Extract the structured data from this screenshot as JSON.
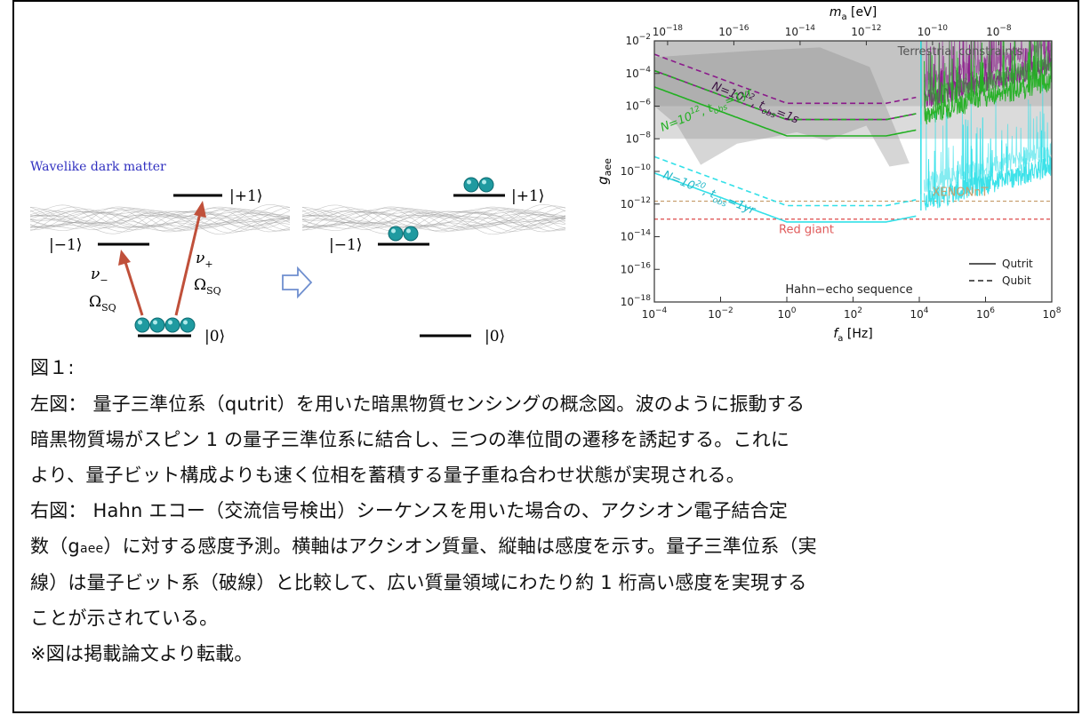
{
  "left_panel": {
    "wave_label": "Wavelike dark matter",
    "level_plus": "|+1⟩",
    "level_minus": "|−1⟩",
    "level_zero": "|0⟩",
    "nu_minus": "ν",
    "nu_minus_sub": "−",
    "nu_plus": "ν",
    "nu_plus_sub": "+",
    "omega": "Ω",
    "omega_sub": "SQ",
    "arrow_color": "#c0503a",
    "ball_color": "#1f9aa0"
  },
  "chart_data": {
    "type": "line",
    "xlabel": "f",
    "xlabel_sub": "a",
    "xlabel_unit": " [Hz]",
    "ylabel": "g",
    "ylabel_sub": "aee",
    "top_label": "m",
    "top_label_sub": "a",
    "top_label_unit": " [eV]",
    "x_scale": "log",
    "y_scale": "log",
    "xlim": [
      0.0001,
      100000000
    ],
    "ylim": [
      1e-18,
      0.01
    ],
    "x_ticks": [
      "10^-4",
      "10^-2",
      "10^0",
      "10^2",
      "10^4",
      "10^6",
      "10^8"
    ],
    "y_ticks": [
      "10^-2",
      "10^-4",
      "10^-6",
      "10^-8",
      "10^-10",
      "10^-12",
      "10^-14",
      "10^-16",
      "10^-18"
    ],
    "top_ticks": [
      "10^-18",
      "10^-16",
      "10^-14",
      "10^-12",
      "10^-10",
      "10^-8"
    ],
    "series": [
      {
        "label": "N=10^12, t_obs=1s",
        "color": "#8b1a8b",
        "qutrit_floor": 1.5e-07,
        "qubit_floor": 1.5e-06
      },
      {
        "label": "N=10^12, t_obs=1yr",
        "color": "#22b022",
        "qutrit_floor": 1.5e-08,
        "qubit_floor": 1.5e-07
      },
      {
        "label": "N=10^20, t_obs=1yr",
        "color": "#33e0e8",
        "qutrit_floor": 8e-14,
        "qubit_floor": 8e-13
      }
    ],
    "bounds": [
      {
        "label": "XENONnT",
        "value": 1.5e-12,
        "color": "#c8a070"
      },
      {
        "label": "Red giant",
        "value": 1.2e-13,
        "color": "#e05a5a"
      }
    ],
    "shaded_label": "Terrestrial constraints",
    "legend": {
      "qutrit": "Qutrit",
      "qubit": "Qubit",
      "position": "bottom-right"
    },
    "annotation": "Hahn−echo sequence"
  },
  "caption": {
    "fig_label": "図１:",
    "left_line1": "左図： 量子三準位系（qutrit）を用いた暗黒物質センシングの概念図。波のように振動する",
    "left_line2": "暗黒物質場がスピン 1 の量子三準位系に結合し、三つの準位間の遷移を誘起する。これに",
    "left_line3": "より、量子ビット構成よりも速く位相を蓄積する量子重ね合わせ状態が実現される。",
    "right_line1": "右図： Hahn エコー（交流信号検出）シーケンスを用いた場合の、アクシオン電子結合定",
    "right_line2_pre": "数（g",
    "right_line2_sub": "aee",
    "right_line2_post": "）に対する感度予測。横軸はアクシオン質量、縦軸は感度を示す。量子三準位系（実",
    "right_line3": "線）は量子ビット系（破線）と比較して、広い質量領域にわたり約 1 桁高い感度を実現する",
    "right_line4": "ことが示されている。",
    "note": "※図は掲載論文より転載。"
  }
}
